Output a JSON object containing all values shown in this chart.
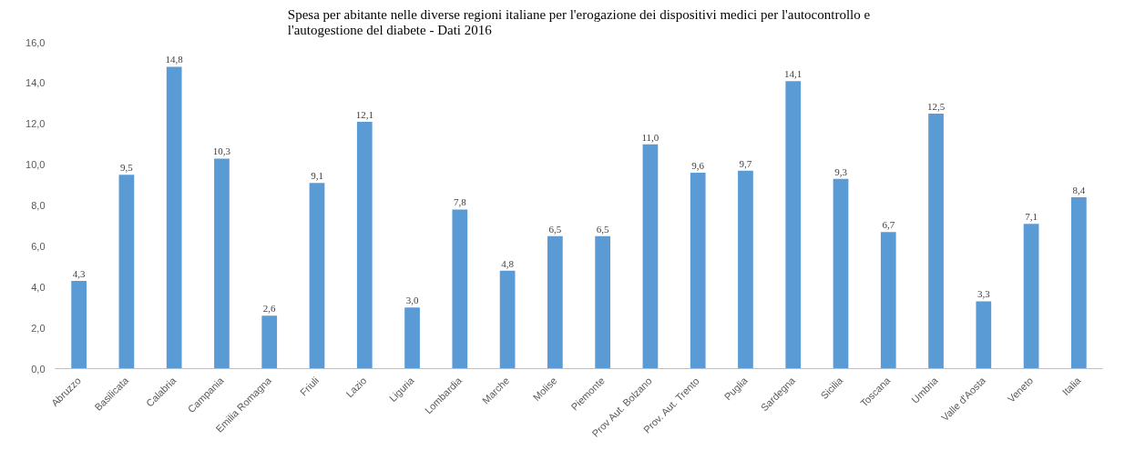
{
  "chart_data": {
    "type": "bar",
    "title": "Spesa per abitante nelle diverse regioni italiane per l'erogazione dei dispositivi medici per l'autocontrollo e\nl'autogestione del diabete - Dati 2016",
    "categories": [
      "Abruzzo",
      "Basilicata",
      "Calabria",
      "Campania",
      "Emilia Romagna",
      "Friuli",
      "Lazio",
      "Liguria",
      "Lombardia",
      "Marche",
      "Molise",
      "Piemonte",
      "Prov Aut. Bolzano",
      "Prov. Aut. Trento",
      "Puglia",
      "Sardegna",
      "Sicilia",
      "Toscana",
      "Umbria",
      "Valle d'Aosta",
      "Veneto",
      "Italia"
    ],
    "values": [
      4.3,
      9.5,
      14.8,
      10.3,
      2.6,
      9.1,
      12.1,
      3.0,
      7.8,
      4.8,
      6.5,
      6.5,
      11.0,
      9.6,
      9.7,
      14.1,
      9.3,
      6.7,
      12.5,
      3.3,
      7.1,
      8.4
    ],
    "value_labels": [
      "4,3",
      "9,5",
      "14,8",
      "10,3",
      "2,6",
      "9,1",
      "12,1",
      "3,0",
      "7,8",
      "4,8",
      "6,5",
      "6,5",
      "11,0",
      "9,6",
      "9,7",
      "14,1",
      "9,3",
      "6,7",
      "12,5",
      "3,3",
      "7,1",
      "8,4"
    ],
    "color": "#5b9bd5",
    "ylim": [
      0,
      16
    ],
    "yticks": [
      {
        "value": 0,
        "label": "0,0"
      },
      {
        "value": 2,
        "label": "2,0"
      },
      {
        "value": 4,
        "label": "4,0"
      },
      {
        "value": 6,
        "label": "6,0"
      },
      {
        "value": 8,
        "label": "8,0"
      },
      {
        "value": 10,
        "label": "10,0"
      },
      {
        "value": 12,
        "label": "12,0"
      },
      {
        "value": 14,
        "label": "14,0"
      },
      {
        "value": 16,
        "label": "16,0"
      }
    ],
    "grid": false
  }
}
